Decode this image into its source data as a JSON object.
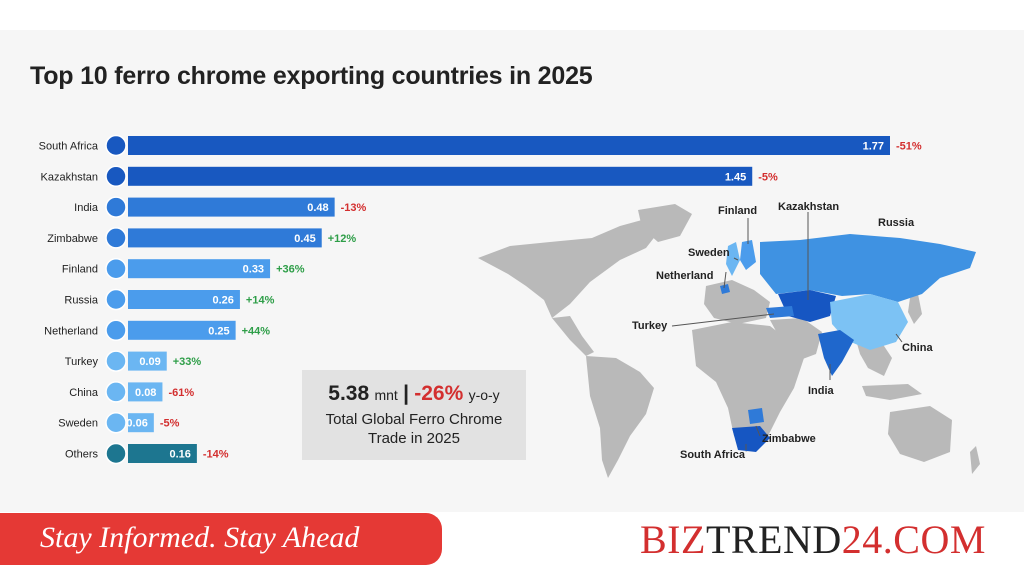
{
  "title": "Top 10 ferro chrome exporting countries in 2025",
  "chart_data": {
    "type": "bar",
    "orientation": "horizontal",
    "title": "Top 10 ferro chrome exporting countries in 2025",
    "categories": [
      "South Africa",
      "Kazakhstan",
      "India",
      "Zimbabwe",
      "Finland",
      "Russia",
      "Netherland",
      "Turkey",
      "China",
      "Sweden",
      "Others"
    ],
    "values": [
      1.77,
      1.45,
      0.48,
      0.45,
      0.33,
      0.26,
      0.25,
      0.09,
      0.08,
      0.06,
      0.16
    ],
    "value_labels": [
      "1.77",
      "1.45",
      "0.48",
      "0.45",
      "0.33",
      "0.26",
      "0.25",
      "0.09",
      "0.08",
      "0.06",
      "0.16"
    ],
    "change_labels": [
      "-51%",
      "-5%",
      "-13%",
      "+12%",
      "+36%",
      "+14%",
      "+44%",
      "+33%",
      "-61%",
      "-5%",
      "-14%"
    ],
    "xlim": [
      0,
      1.77
    ],
    "grid": false,
    "colors": {
      "bar_dark": "#1858c0",
      "bar_mid": "#2f7ad8",
      "bar_light": "#4b9cec",
      "bar_lighter": "#6bb6f2",
      "bar_others": "#1d7690",
      "negative": "#d32f2f",
      "positive": "#2e9e48"
    }
  },
  "map": {
    "labels": [
      "Finland",
      "Kazakhstan",
      "Russia",
      "Sweden",
      "Netherland",
      "Turkey",
      "China",
      "India",
      "Zimbabwe",
      "South Africa"
    ]
  },
  "summary": {
    "value": "5.38",
    "unit": "mnt",
    "separator": "|",
    "change": "-26%",
    "change_suffix": "y-o-y",
    "line2": "Total Global Ferro Chrome",
    "line3": "Trade in 2025"
  },
  "footer": {
    "tagline": "Stay Informed. Stay Ahead",
    "brand_part1": "BIZ",
    "brand_part2": "TREND",
    "brand_part3": "24.COM"
  }
}
